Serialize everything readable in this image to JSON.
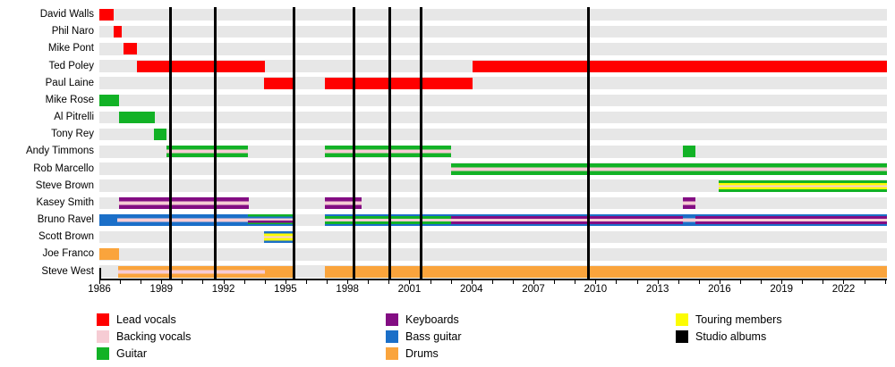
{
  "chart_data": {
    "type": "timeline",
    "x_axis": {
      "min": 1986,
      "max": 2024.1,
      "labeled_ticks": [
        1986,
        1989,
        1992,
        1995,
        1998,
        2001,
        2004,
        2007,
        2010,
        2013,
        2016,
        2019,
        2022
      ],
      "minor_tick_every": 1,
      "minor_tick_start": 1986,
      "minor_tick_end": 2024
    },
    "colors": {
      "lead_vocals": "#ff0000",
      "backing_vocals": "#f6ccd4",
      "guitar": "#12b226",
      "keyboards": "#830d83",
      "bass": "#1b6fc8",
      "drums": "#faa43c",
      "touring": "#fcfc03",
      "albums": "#000000",
      "row_band": "#e7e7e7"
    },
    "album_lines": [
      1989.45,
      1991.6,
      1995.4,
      1998.3,
      2000.05,
      2001.55,
      2009.65
    ],
    "members": [
      {
        "name": "David Walls",
        "bars": [
          {
            "start": 1986.0,
            "end": 1986.7,
            "stripes": [
              [
                "lead_vocals",
                1
              ]
            ]
          }
        ]
      },
      {
        "name": "Phil Naro",
        "bars": [
          {
            "start": 1986.7,
            "end": 1987.1,
            "stripes": [
              [
                "lead_vocals",
                1
              ]
            ]
          }
        ]
      },
      {
        "name": "Mike Pont",
        "bars": [
          {
            "start": 1987.15,
            "end": 1987.8,
            "stripes": [
              [
                "lead_vocals",
                1
              ]
            ]
          }
        ]
      },
      {
        "name": "Ted Poley",
        "bars": [
          {
            "start": 1987.8,
            "end": 1994.0,
            "stripes": [
              [
                "lead_vocals",
                1
              ]
            ]
          },
          {
            "start": 2004.05,
            "end": 2024.1,
            "stripes": [
              [
                "lead_vocals",
                1
              ]
            ]
          }
        ]
      },
      {
        "name": "Paul Laine",
        "bars": [
          {
            "start": 1993.95,
            "end": 1995.45,
            "stripes": [
              [
                "lead_vocals",
                1
              ]
            ]
          },
          {
            "start": 1996.9,
            "end": 2004.05,
            "stripes": [
              [
                "lead_vocals",
                1
              ]
            ]
          }
        ]
      },
      {
        "name": "Mike Rose",
        "bars": [
          {
            "start": 1986.0,
            "end": 1986.95,
            "stripes": [
              [
                "guitar",
                1
              ]
            ]
          }
        ]
      },
      {
        "name": "Al Pitrelli",
        "bars": [
          {
            "start": 1986.95,
            "end": 1988.68,
            "stripes": [
              [
                "guitar",
                1
              ]
            ]
          }
        ]
      },
      {
        "name": "Tony Rey",
        "bars": [
          {
            "start": 1988.63,
            "end": 1989.25,
            "stripes": [
              [
                "guitar",
                1
              ]
            ]
          }
        ]
      },
      {
        "name": "Andy Timmons",
        "bars": [
          {
            "start": 1989.25,
            "end": 1993.2,
            "stripes": [
              [
                "guitar",
                4
              ],
              [
                "backing_vocals",
                3
              ],
              [
                "guitar",
                4
              ]
            ]
          },
          {
            "start": 1996.9,
            "end": 2003.0,
            "stripes": [
              [
                "guitar",
                4
              ],
              [
                "backing_vocals",
                3
              ],
              [
                "guitar",
                4
              ]
            ]
          },
          {
            "start": 2014.25,
            "end": 2014.85,
            "stripes": [
              [
                "guitar",
                1
              ]
            ]
          }
        ]
      },
      {
        "name": "Rob Marcello",
        "bars": [
          {
            "start": 2003.0,
            "end": 2024.1,
            "stripes": [
              [
                "guitar",
                4
              ],
              [
                "backing_vocals",
                3
              ],
              [
                "guitar",
                4
              ]
            ]
          }
        ]
      },
      {
        "name": "Steve Brown",
        "bars": [
          {
            "start": 2015.95,
            "end": 2024.1,
            "stripes": [
              [
                "guitar",
                3
              ],
              [
                "touring",
                2.5
              ],
              [
                "backing_vocals",
                2.5
              ],
              [
                "touring",
                2.5
              ],
              [
                "guitar",
                3
              ]
            ]
          }
        ]
      },
      {
        "name": "Kasey Smith",
        "bars": [
          {
            "start": 1986.95,
            "end": 1993.25,
            "stripes": [
              [
                "keyboards",
                4
              ],
              [
                "backing_vocals",
                3
              ],
              [
                "keyboards",
                4
              ]
            ]
          },
          {
            "start": 1996.9,
            "end": 1998.7,
            "stripes": [
              [
                "keyboards",
                4
              ],
              [
                "backing_vocals",
                3
              ],
              [
                "keyboards",
                4
              ]
            ]
          },
          {
            "start": 2014.25,
            "end": 2014.85,
            "stripes": [
              [
                "keyboards",
                4
              ],
              [
                "backing_vocals",
                3
              ],
              [
                "keyboards",
                4
              ]
            ]
          }
        ]
      },
      {
        "name": "Bruno Ravel",
        "bars": [
          {
            "start": 1986.0,
            "end": 1986.85,
            "stripes": [
              [
                "bass",
                1
              ]
            ]
          },
          {
            "start": 1986.85,
            "end": 1993.2,
            "stripes": [
              [
                "bass",
                4
              ],
              [
                "backing_vocals",
                3
              ],
              [
                "bass",
                4
              ]
            ]
          },
          {
            "start": 1993.2,
            "end": 1995.45,
            "stripes": [
              [
                "guitar",
                2.4
              ],
              [
                "bass",
                1.8
              ],
              [
                "backing_vocals",
                2.6
              ],
              [
                "keyboards",
                2.4
              ],
              [
                "guitar",
                1.8
              ],
              [
                "bass",
                1.8
              ]
            ]
          },
          {
            "start": 1996.9,
            "end": 2003.0,
            "stripes": [
              [
                "bass",
                2
              ],
              [
                "guitar",
                2.8
              ],
              [
                "backing_vocals",
                2.6
              ],
              [
                "guitar",
                2.8
              ],
              [
                "bass",
                2
              ]
            ]
          },
          {
            "start": 2003.0,
            "end": 2014.25,
            "stripes": [
              [
                "bass",
                2
              ],
              [
                "keyboards",
                2.6
              ],
              [
                "backing_vocals",
                2.4
              ],
              [
                "keyboards",
                2.6
              ],
              [
                "bass",
                2
              ]
            ]
          },
          {
            "start": 2014.25,
            "end": 2014.85,
            "stripes": [
              [
                "bass",
                4
              ],
              [
                "backing_vocals",
                3
              ],
              [
                "bass",
                4
              ]
            ]
          },
          {
            "start": 2014.85,
            "end": 2024.1,
            "stripes": [
              [
                "bass",
                2
              ],
              [
                "keyboards",
                2.6
              ],
              [
                "backing_vocals",
                2.4
              ],
              [
                "keyboards",
                2.6
              ],
              [
                "bass",
                2
              ]
            ]
          }
        ]
      },
      {
        "name": "Scott Brown",
        "bars": [
          {
            "start": 1993.95,
            "end": 1995.5,
            "stripes": [
              [
                "bass",
                2.5
              ],
              [
                "touring",
                3
              ],
              [
                "backing_vocals",
                2
              ],
              [
                "touring",
                3
              ],
              [
                "bass",
                2.5
              ]
            ]
          }
        ]
      },
      {
        "name": "Joe Franco",
        "bars": [
          {
            "start": 1986.0,
            "end": 1986.95,
            "stripes": [
              [
                "drums",
                1
              ]
            ]
          }
        ]
      },
      {
        "name": "Steve West",
        "bars": [
          {
            "start": 1986.9,
            "end": 1994.0,
            "stripes": [
              [
                "drums",
                4
              ],
              [
                "backing_vocals",
                3
              ],
              [
                "drums",
                4
              ]
            ]
          },
          {
            "start": 1994.0,
            "end": 1995.45,
            "stripes": [
              [
                "drums",
                1
              ]
            ]
          },
          {
            "start": 1996.9,
            "end": 2024.1,
            "stripes": [
              [
                "drums",
                1
              ]
            ]
          }
        ]
      }
    ],
    "legend_columns": [
      [
        {
          "label": "Lead vocals",
          "key": "lead_vocals"
        },
        {
          "label": "Backing vocals",
          "key": "backing_vocals"
        },
        {
          "label": "Guitar",
          "key": "guitar"
        }
      ],
      [
        {
          "label": "Keyboards",
          "key": "keyboards"
        },
        {
          "label": "Bass guitar",
          "key": "bass"
        },
        {
          "label": "Drums",
          "key": "drums"
        }
      ],
      [
        {
          "label": "Touring members",
          "key": "touring"
        },
        {
          "label": "Studio albums",
          "key": "albums"
        }
      ]
    ]
  }
}
